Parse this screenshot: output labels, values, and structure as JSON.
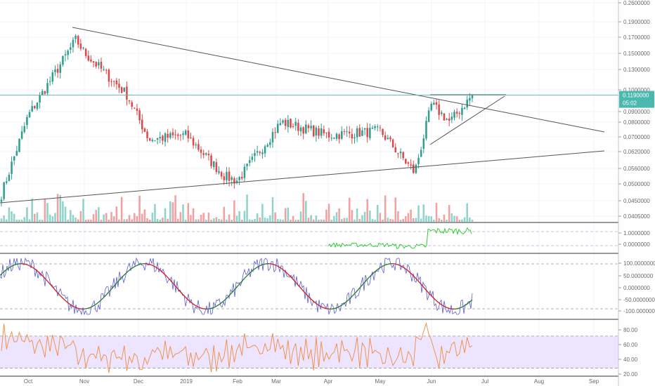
{
  "price_badge": {
    "value": "0.1190000",
    "countdown": "05:02",
    "color": "#4bb8b0"
  },
  "colors": {
    "up": "#2f9e8f",
    "down": "#e04848",
    "volume_up": "#8fd3c9",
    "volume_down": "#f3a0a0",
    "trendline": "#555555",
    "grid": "#f0f3fa",
    "pane_border": "#333333",
    "rsi_line": "#f08c3c",
    "rsi_band": "#ede4ff",
    "stoch_k": "#5b5bd6",
    "stoch_up": "#2e7d32",
    "stoch_down": "#c62828",
    "obv_line": "#33cc33"
  },
  "chart_data": [
    {
      "type": "candlestick",
      "title": "",
      "time_axis": [
        "Oct",
        "Nov",
        "Dec",
        "2019",
        "Feb",
        "Mar",
        "Apr",
        "May",
        "Jun",
        "Jul",
        "Aug",
        "Sep"
      ],
      "y_ticks": [
        "0.2600000",
        "0.1900000",
        "0.1700000",
        "0.1500000",
        "0.1300000",
        "0.1000000",
        "0.0900000",
        "0.0800000",
        "0.0700000",
        "0.0620000",
        "0.0560000",
        "0.0500000",
        "0.0450000",
        "0.0405000"
      ],
      "ylim": [
        0.0405,
        0.26
      ],
      "scale": "log",
      "trend": [
        [
          "Sep",
          0.05
        ],
        [
          "Oct",
          0.1
        ],
        [
          "Nov",
          0.19
        ],
        [
          "Nov",
          0.17
        ],
        [
          "Dec",
          0.12
        ],
        [
          "Dec",
          0.082
        ],
        [
          "2019",
          0.085
        ],
        [
          "Feb",
          0.06
        ],
        [
          "Feb",
          0.058
        ],
        [
          "Mar",
          0.095
        ],
        [
          "Apr",
          0.085
        ],
        [
          "May",
          0.088
        ],
        [
          "May",
          0.062
        ],
        [
          "Jun",
          0.11
        ],
        [
          "Jun",
          0.095
        ],
        [
          "Jun",
          0.119
        ]
      ],
      "trendlines": [
        {
          "from": [
            "Oct",
            0.21
          ],
          "to": [
            "Sep",
            0.083
          ]
        },
        {
          "from": [
            "Sep",
            0.047
          ],
          "to": [
            "Sep",
            0.072
          ]
        },
        {
          "from": [
            "Jun",
            0.113
          ],
          "to": [
            "Jul",
            0.113
          ]
        },
        {
          "from": [
            "Jun",
            0.077
          ],
          "to": [
            "Jul",
            0.113
          ]
        }
      ]
    },
    {
      "type": "line",
      "panel": "obv",
      "y_ticks": [
        "1.0000000",
        "0.0000000"
      ],
      "ylim": [
        -0.5,
        1.6
      ]
    },
    {
      "type": "line",
      "panel": "stochastic",
      "y_ticks": [
        "100.0000000",
        "50.0000000",
        "0.0000000",
        "-50.0000000",
        "-100.0000000"
      ],
      "ylim": [
        -100,
        100
      ]
    },
    {
      "type": "line",
      "panel": "rsi",
      "y_ticks": [
        "80.00",
        "60.00",
        "40.00",
        "20.00"
      ],
      "ylim": [
        20,
        90
      ]
    }
  ]
}
